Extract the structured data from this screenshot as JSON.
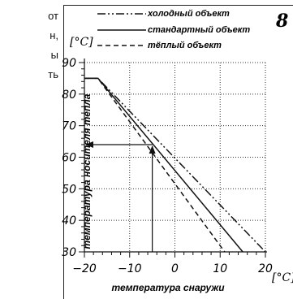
{
  "left_column": [
    "от",
    "н,",
    "ы",
    "ть"
  ],
  "figure_number": "8",
  "chart_data": {
    "type": "line",
    "xlabel": "температура снаружи",
    "ylabel": "температура носителя тепла",
    "x_unit": "[°C]",
    "y_unit": "[°C]",
    "xlim": [
      -20,
      20
    ],
    "ylim": [
      30,
      90
    ],
    "x_ticks": [
      -20,
      -10,
      0,
      10,
      20
    ],
    "y_ticks": [
      30,
      40,
      50,
      60,
      70,
      80,
      90
    ],
    "grid": true,
    "series": [
      {
        "name": "холодный объект",
        "style": "dashdotdot",
        "x": [
          -20,
          -17,
          20
        ],
        "y": [
          85,
          85,
          30
        ]
      },
      {
        "name": "стандартный объект",
        "style": "solid",
        "x": [
          -20,
          -17,
          15
        ],
        "y": [
          85,
          85,
          30
        ]
      },
      {
        "name": "тёплый объект",
        "style": "dashed",
        "x": [
          -20,
          -17,
          11
        ],
        "y": [
          85,
          85,
          30
        ]
      }
    ],
    "annotation": {
      "from_x": -5,
      "to_y": 64
    }
  }
}
